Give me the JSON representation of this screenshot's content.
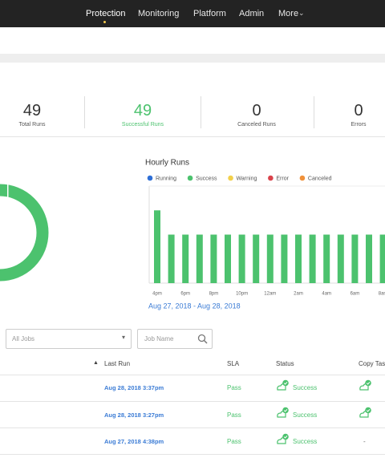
{
  "nav": {
    "items": [
      "Protection",
      "Monitoring",
      "Platform",
      "Admin",
      "More"
    ],
    "active": 0
  },
  "stats": [
    {
      "value": 49,
      "label": "Total Runs"
    },
    {
      "value": 49,
      "label": "Successful Runs"
    },
    {
      "value": 0,
      "label": "Canceled Runs"
    },
    {
      "value": 0,
      "label": "Errors"
    }
  ],
  "chart_data": {
    "type": "bar",
    "title": "Hourly Runs",
    "legend": [
      {
        "name": "Running",
        "color": "#2f6fd6"
      },
      {
        "name": "Success",
        "color": "#4cc26e"
      },
      {
        "name": "Warning",
        "color": "#f2d04b"
      },
      {
        "name": "Error",
        "color": "#d9434b"
      },
      {
        "name": "Canceled",
        "color": "#f0913a"
      }
    ],
    "categories": [
      "4pm",
      null,
      "6pm",
      null,
      "8pm",
      null,
      "10pm",
      null,
      "12am",
      null,
      "2am",
      null,
      "4am",
      null,
      "6am",
      null,
      "8am"
    ],
    "values": [
      3,
      2,
      2,
      2,
      2,
      2,
      2,
      2,
      2,
      2,
      2,
      2,
      2,
      2,
      2,
      2,
      2
    ],
    "color": "#4cc26e",
    "ylim": [
      0,
      4
    ],
    "date_range": "Aug 27, 2018 - Aug 28, 2018"
  },
  "filters": {
    "job_select": "All Jobs",
    "search_placeholder": "Job Name"
  },
  "table": {
    "headers": [
      "Last Run",
      "SLA",
      "Status",
      "Copy Tasks"
    ],
    "rows": [
      {
        "last_run": "Aug 28, 2018 3:37pm",
        "sla": "Pass",
        "status": "Success"
      },
      {
        "last_run": "Aug 28, 2018 3:27pm",
        "sla": "Pass",
        "status": "Success"
      },
      {
        "last_run": "Aug 27, 2018 4:38pm",
        "sla": "Pass",
        "status": "Success",
        "copy_tasks": "-"
      }
    ]
  }
}
